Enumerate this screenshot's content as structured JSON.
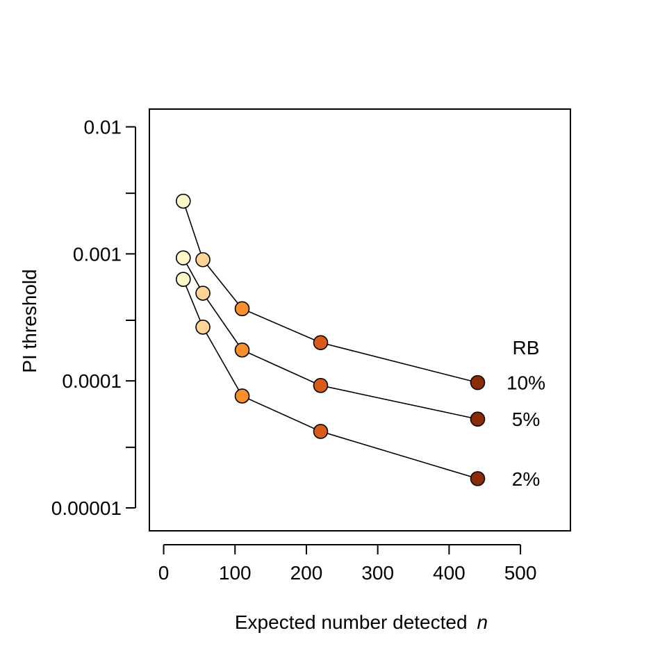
{
  "chart_data": {
    "type": "line",
    "xlabel": "Expected number detected",
    "xlabel_var": "n",
    "ylabel": "PI threshold",
    "xlim": [
      -20,
      570
    ],
    "x_ticks": [
      0,
      100,
      200,
      300,
      400,
      500
    ],
    "y_scale": "log",
    "ylim": [
      6.6e-06,
      0.0138
    ],
    "y_ticks": [
      1e-05,
      0.0001,
      0.001,
      0.01
    ],
    "y_tick_labels": [
      "0.00001",
      "0.0001",
      "0.001",
      "0.01"
    ],
    "y_minor_ticks": [
      3e-05,
      0.0003,
      0.003
    ],
    "legend_title": "RB",
    "point_colors": [
      "#fff7c8",
      "#fdd494",
      "#f98e2c",
      "#d95b17",
      "#8b2c06"
    ],
    "series": [
      {
        "name": "10%",
        "x": [
          27.5,
          55,
          110,
          220,
          440
        ],
        "y": [
          0.0026,
          0.0009,
          0.00037,
          0.0002,
          9.7e-05
        ]
      },
      {
        "name": "5%",
        "x": [
          27.5,
          55,
          110,
          220,
          440
        ],
        "y": [
          0.00093,
          0.00049,
          0.000175,
          9.2e-05,
          5e-05
        ]
      },
      {
        "name": "2%",
        "x": [
          27.5,
          55,
          110,
          220,
          440
        ],
        "y": [
          0.00063,
          0.000265,
          7.6e-05,
          4e-05,
          1.7e-05
        ]
      }
    ]
  }
}
